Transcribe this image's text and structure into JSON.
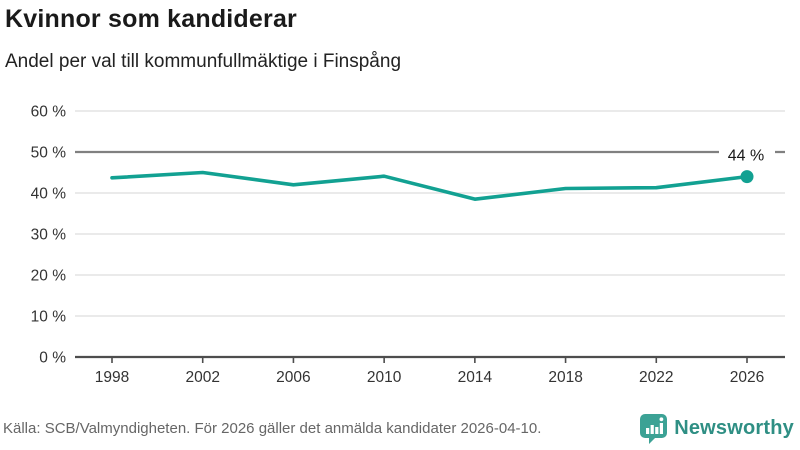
{
  "header": {
    "title": "Kvinnor som kandiderar",
    "subtitle": "Andel per val till kommunfullmäktige i Finspång"
  },
  "chart_data": {
    "type": "line",
    "title": "Kvinnor som kandiderar",
    "subtitle": "Andel per val till kommunfullmäktige i Finspång",
    "x": [
      1998,
      2002,
      2006,
      2010,
      2014,
      2018,
      2022,
      2026
    ],
    "values": [
      43.7,
      45,
      42,
      44.1,
      38.5,
      41.1,
      41.3,
      44
    ],
    "x_tick_labels": [
      "1998",
      "2002",
      "2006",
      "2010",
      "2014",
      "2018",
      "2022",
      "2026"
    ],
    "y_ticks": [
      0,
      10,
      20,
      30,
      40,
      50,
      60
    ],
    "y_tick_labels": [
      "0 %",
      "10 %",
      "20 %",
      "30 %",
      "40 %",
      "50 %",
      "60 %"
    ],
    "ylim": [
      0,
      60
    ],
    "reference_line": 50,
    "end_label": "44 %",
    "grid": true,
    "legend": "none",
    "line_color": "#12A192",
    "grid_color": "#E3E3E3",
    "reference_line_color": "#808080",
    "axis_color": "#4D4D4D",
    "tick_label_color": "#333333",
    "end_label_color": "#1a1a1a"
  },
  "footer": {
    "source": "Källa: SCB/Valmyndigheten. För 2026 gäller det anmälda kandidater 2026-04-10.",
    "brand": "Newsworthy",
    "brand_color": "#2F8F84",
    "logo_color": "#3CA295"
  }
}
